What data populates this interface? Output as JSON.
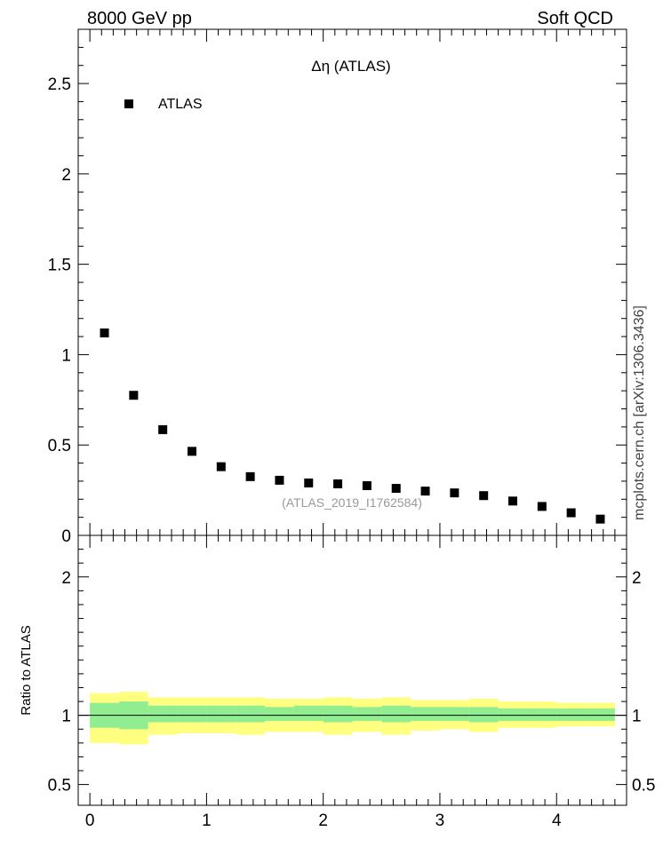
{
  "header": {
    "left": "8000 GeV pp",
    "right": "Soft QCD"
  },
  "side_label": "mcplots.cern.ch [arXiv:1306.3436]",
  "chart_data": [
    {
      "type": "scatter",
      "title": "Δη (ATLAS)",
      "legend": {
        "entries": [
          "ATLAS"
        ],
        "position": "top-left"
      },
      "watermark": "(ATLAS_2019_I1762584)",
      "xlim": [
        -0.1,
        4.6
      ],
      "ylim": [
        0,
        2.8
      ],
      "y_ticks": [
        0,
        0.5,
        1,
        1.5,
        2,
        2.5
      ],
      "y_tick_labels": [
        "0",
        "0.5",
        "1",
        "1.5",
        "2",
        "2.5"
      ],
      "series": [
        {
          "name": "ATLAS",
          "x": [
            0.125,
            0.375,
            0.625,
            0.875,
            1.125,
            1.375,
            1.625,
            1.875,
            2.125,
            2.375,
            2.625,
            2.875,
            3.125,
            3.375,
            3.625,
            3.875,
            4.125,
            4.375
          ],
          "y": [
            1.12,
            0.775,
            0.585,
            0.465,
            0.38,
            0.325,
            0.305,
            0.29,
            0.285,
            0.275,
            0.26,
            0.245,
            0.235,
            0.22,
            0.19,
            0.16,
            0.125,
            0.09
          ]
        }
      ]
    },
    {
      "type": "area",
      "ylabel": "Ratio to ATLAS",
      "xlim": [
        -0.1,
        4.6
      ],
      "ylim": [
        0.35,
        2.3
      ],
      "x_ticks": [
        0,
        1,
        2,
        3,
        4
      ],
      "x_tick_labels": [
        "0",
        "1",
        "2",
        "3",
        "4"
      ],
      "y_ticks": [
        0.5,
        1,
        2
      ],
      "y_tick_labels": [
        "0.5",
        "1",
        "2"
      ],
      "reference_line": 1,
      "bin_edges": [
        0,
        0.25,
        0.5,
        0.75,
        1.0,
        1.25,
        1.5,
        1.75,
        2.0,
        2.25,
        2.5,
        2.75,
        3.0,
        3.25,
        3.5,
        3.75,
        4.0,
        4.25,
        4.5
      ],
      "bands": [
        {
          "name": "stat",
          "color": "#90ee90",
          "low": [
            0.91,
            0.9,
            0.95,
            0.95,
            0.95,
            0.95,
            0.96,
            0.96,
            0.95,
            0.96,
            0.95,
            0.96,
            0.96,
            0.95,
            0.96,
            0.96,
            0.96,
            0.96
          ],
          "high": [
            1.09,
            1.1,
            1.07,
            1.07,
            1.07,
            1.07,
            1.06,
            1.07,
            1.07,
            1.06,
            1.07,
            1.06,
            1.06,
            1.06,
            1.05,
            1.05,
            1.05,
            1.05
          ]
        },
        {
          "name": "total",
          "color": "#ffff80",
          "low": [
            0.8,
            0.79,
            0.86,
            0.87,
            0.87,
            0.86,
            0.88,
            0.88,
            0.86,
            0.88,
            0.86,
            0.89,
            0.9,
            0.88,
            0.91,
            0.91,
            0.92,
            0.92
          ],
          "high": [
            1.16,
            1.17,
            1.13,
            1.13,
            1.13,
            1.13,
            1.12,
            1.12,
            1.13,
            1.12,
            1.13,
            1.11,
            1.11,
            1.12,
            1.1,
            1.1,
            1.09,
            1.09
          ]
        }
      ]
    }
  ]
}
